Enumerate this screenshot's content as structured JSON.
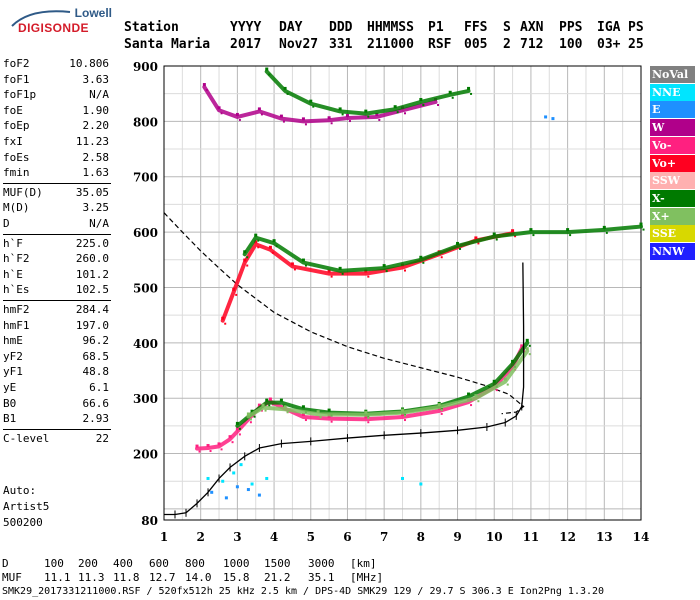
{
  "logo": {
    "brand_top": "Lowell",
    "brand_main": "DIGISONDE"
  },
  "header": {
    "labels": [
      "Station",
      "YYYY",
      "DAY",
      "DDD",
      "HHMMSS",
      "P1",
      "FFS",
      "S",
      "AXN",
      "PPS",
      "IGA",
      "PS"
    ],
    "values": [
      "Santa Maria",
      "2017",
      "Nov27",
      "331",
      "211000",
      "RSF",
      "005",
      "2",
      "712",
      "100",
      "03+",
      "25"
    ]
  },
  "params": {
    "group1": [
      [
        "foF2",
        "10.806"
      ],
      [
        "foF1",
        "3.63"
      ],
      [
        "foF1p",
        "N/A"
      ],
      [
        "foE",
        "1.90"
      ],
      [
        "foEp",
        "2.20"
      ],
      [
        "fxI",
        "11.23"
      ],
      [
        "foEs",
        "2.58"
      ],
      [
        "fmin",
        "1.63"
      ]
    ],
    "group2": [
      [
        "MUF(D)",
        "35.05"
      ],
      [
        "M(D)",
        "3.25"
      ],
      [
        "D",
        "N/A"
      ]
    ],
    "group3": [
      [
        "h`F",
        "225.0"
      ],
      [
        "h`F2",
        "260.0"
      ],
      [
        "h`E",
        "101.2"
      ],
      [
        "h`Es",
        "102.5"
      ]
    ],
    "group4": [
      [
        "hmF2",
        "284.4"
      ],
      [
        "hmF1",
        "197.0"
      ],
      [
        "hmE",
        "96.2"
      ],
      [
        "yF2",
        "68.5"
      ],
      [
        "yF1",
        "48.8"
      ],
      [
        "yE",
        "6.1"
      ],
      [
        "B0",
        "66.6"
      ],
      [
        "B1",
        "2.93"
      ]
    ],
    "group5": [
      [
        "C-level",
        "22"
      ]
    ]
  },
  "auto": {
    "line1": "Auto:",
    "line2": "Artist5",
    "line3": "500200"
  },
  "legend": [
    {
      "label": "NoVal",
      "bg": "#808080",
      "fg": "#ffffff"
    },
    {
      "label": "NNE",
      "bg": "#00e5ff",
      "fg": "#ffffff"
    },
    {
      "label": "E",
      "bg": "#1e90ff",
      "fg": "#ffffff"
    },
    {
      "label": "W",
      "bg": "#b0008a",
      "fg": "#ffffff"
    },
    {
      "label": "Vo-",
      "bg": "#ff2080",
      "fg": "#ffffff"
    },
    {
      "label": "Vo+",
      "bg": "#ff0020",
      "fg": "#ffffff"
    },
    {
      "label": "SSW",
      "bg": "#ffb0b0",
      "fg": "#ffffff"
    },
    {
      "label": "X-",
      "bg": "#007a00",
      "fg": "#ffffff"
    },
    {
      "label": "X+",
      "bg": "#80c060",
      "fg": "#ffffff"
    },
    {
      "label": "SSE",
      "bg": "#d8d800",
      "fg": "#ffffff"
    },
    {
      "label": "NNW",
      "bg": "#2020ff",
      "fg": "#ffffff"
    }
  ],
  "footer": {
    "d_label": "D",
    "d_values": [
      "100",
      "200",
      "400",
      "600",
      "800",
      "1000",
      "1500",
      "3000"
    ],
    "d_unit": "[km]",
    "muf_label": "MUF",
    "muf_values": [
      "11.1",
      "11.3",
      "11.8",
      "12.7",
      "14.0",
      "15.8",
      "21.2",
      "35.1"
    ],
    "muf_unit": "[MHz]",
    "file_line": "SMK29_2017331211000.RSF / 520fx512h 25 kHz 2.5 km / DPS-4D SMK29 129 / 29.7 S 306.3 E Ion2Png 1.3.20"
  },
  "chart_data": {
    "type": "scatter",
    "title": "",
    "xlabel": "",
    "ylabel": "",
    "xlim": [
      1,
      14
    ],
    "ylim": [
      80,
      900
    ],
    "x_ticks": [
      1,
      2,
      3,
      4,
      5,
      6,
      7,
      8,
      9,
      10,
      11,
      12,
      13,
      14
    ],
    "y_ticks": [
      80,
      200,
      300,
      400,
      500,
      600,
      700,
      800,
      900
    ],
    "grid": true,
    "legend_position": "right",
    "series": [
      {
        "name": "Vo-",
        "color": "#ff2080",
        "points": [
          [
            1.9,
            209
          ],
          [
            2.2,
            210
          ],
          [
            2.5,
            213
          ],
          [
            2.8,
            226
          ],
          [
            3.0,
            240
          ],
          [
            3.3,
            262
          ],
          [
            3.6,
            283
          ],
          [
            3.9,
            294
          ],
          [
            4.3,
            281
          ],
          [
            4.8,
            266
          ],
          [
            5.5,
            263
          ],
          [
            6.5,
            262
          ],
          [
            7.5,
            266
          ],
          [
            8.5,
            277
          ],
          [
            9.3,
            293
          ],
          [
            10.0,
            320
          ],
          [
            10.5,
            357
          ],
          [
            10.75,
            390
          ]
        ]
      },
      {
        "name": "X-",
        "color": "#007a00",
        "points": [
          [
            3.0,
            250
          ],
          [
            3.4,
            272
          ],
          [
            3.8,
            292
          ],
          [
            4.2,
            292
          ],
          [
            4.8,
            280
          ],
          [
            5.5,
            274
          ],
          [
            6.5,
            272
          ],
          [
            7.5,
            276
          ],
          [
            8.5,
            286
          ],
          [
            9.3,
            303
          ],
          [
            10.0,
            326
          ],
          [
            10.5,
            362
          ],
          [
            10.9,
            400
          ]
        ]
      },
      {
        "name": "X+",
        "color": "#80c060",
        "points": [
          [
            3.3,
            267
          ],
          [
            3.7,
            283
          ],
          [
            4.3,
            280
          ],
          [
            5.2,
            271
          ],
          [
            6.5,
            270
          ],
          [
            7.5,
            274
          ],
          [
            8.5,
            284
          ],
          [
            9.5,
            300
          ],
          [
            10.3,
            330
          ],
          [
            10.9,
            385
          ]
        ]
      },
      {
        "name": "Vo+",
        "color": "#ff0020",
        "points": [
          [
            2.6,
            440
          ],
          [
            2.9,
            492
          ],
          [
            3.2,
            545
          ],
          [
            3.5,
            578
          ],
          [
            3.9,
            568
          ],
          [
            4.5,
            538
          ],
          [
            5.5,
            525
          ],
          [
            6.5,
            525
          ],
          [
            7.5,
            536
          ],
          [
            8.5,
            560
          ],
          [
            9.5,
            585
          ],
          [
            10.5,
            598
          ]
        ]
      },
      {
        "name": "X-",
        "color": "#007a00",
        "points": [
          [
            3.2,
            560
          ],
          [
            3.5,
            590
          ],
          [
            4.0,
            580
          ],
          [
            4.8,
            545
          ],
          [
            5.8,
            530
          ],
          [
            7.0,
            535
          ],
          [
            8.0,
            550
          ],
          [
            9.0,
            575
          ],
          [
            10.0,
            592
          ],
          [
            11.0,
            600
          ],
          [
            12.0,
            600
          ],
          [
            13.0,
            604
          ],
          [
            14.0,
            610
          ]
        ]
      },
      {
        "name": "W",
        "color": "#b0008a",
        "points": [
          [
            2.1,
            862
          ],
          [
            2.5,
            820
          ],
          [
            3.0,
            808
          ],
          [
            3.6,
            818
          ],
          [
            4.2,
            805
          ],
          [
            4.8,
            800
          ],
          [
            5.5,
            802
          ],
          [
            6.0,
            806
          ],
          [
            6.8,
            808
          ],
          [
            7.5,
            820
          ],
          [
            8.4,
            835
          ]
        ]
      },
      {
        "name": "X-",
        "color": "#007a00",
        "points": [
          [
            3.8,
            890
          ],
          [
            4.3,
            855
          ],
          [
            5.0,
            832
          ],
          [
            5.8,
            818
          ],
          [
            6.5,
            814
          ],
          [
            7.3,
            822
          ],
          [
            8.0,
            835
          ],
          [
            8.8,
            848
          ],
          [
            9.3,
            855
          ]
        ]
      },
      {
        "name": "NNE",
        "color": "#00e5ff",
        "points": [
          [
            2.2,
            155
          ],
          [
            2.6,
            150
          ],
          [
            2.9,
            165
          ],
          [
            3.1,
            180
          ],
          [
            3.4,
            145
          ],
          [
            3.8,
            155
          ],
          [
            7.5,
            155
          ],
          [
            8.0,
            145
          ]
        ]
      },
      {
        "name": "E",
        "color": "#1e90ff",
        "points": [
          [
            2.3,
            130
          ],
          [
            2.7,
            120
          ],
          [
            3.0,
            140
          ],
          [
            3.3,
            135
          ],
          [
            3.6,
            125
          ],
          [
            11.4,
            808
          ],
          [
            11.6,
            805
          ]
        ]
      }
    ],
    "profile": {
      "name": "Profile",
      "color": "#000000",
      "points": [
        [
          1.0,
          90
        ],
        [
          1.3,
          90
        ],
        [
          1.6,
          93
        ],
        [
          1.9,
          110
        ],
        [
          2.2,
          130
        ],
        [
          2.5,
          155
        ],
        [
          2.8,
          175
        ],
        [
          3.2,
          195
        ],
        [
          3.6,
          210
        ],
        [
          4.2,
          218
        ],
        [
          5.0,
          222
        ],
        [
          6.0,
          228
        ],
        [
          7.0,
          233
        ],
        [
          8.0,
          237
        ],
        [
          9.0,
          242
        ],
        [
          9.8,
          248
        ],
        [
          10.3,
          256
        ],
        [
          10.6,
          268
        ],
        [
          10.75,
          285
        ],
        [
          10.8,
          320
        ],
        [
          10.8,
          370
        ],
        [
          10.8,
          430
        ],
        [
          10.78,
          545
        ]
      ]
    },
    "muf_curve": {
      "name": "MUF",
      "color": "#000000",
      "dash": true,
      "points": [
        [
          1.0,
          635
        ],
        [
          1.5,
          600
        ],
        [
          2.0,
          566
        ],
        [
          2.5,
          535
        ],
        [
          3.0,
          505
        ],
        [
          4.0,
          455
        ],
        [
          5.0,
          420
        ],
        [
          6.0,
          393
        ],
        [
          7.0,
          372
        ],
        [
          8.0,
          355
        ],
        [
          9.0,
          338
        ],
        [
          9.8,
          322
        ],
        [
          10.4,
          307
        ],
        [
          10.8,
          285
        ],
        [
          10.6,
          275
        ],
        [
          10.2,
          272
        ]
      ]
    }
  }
}
